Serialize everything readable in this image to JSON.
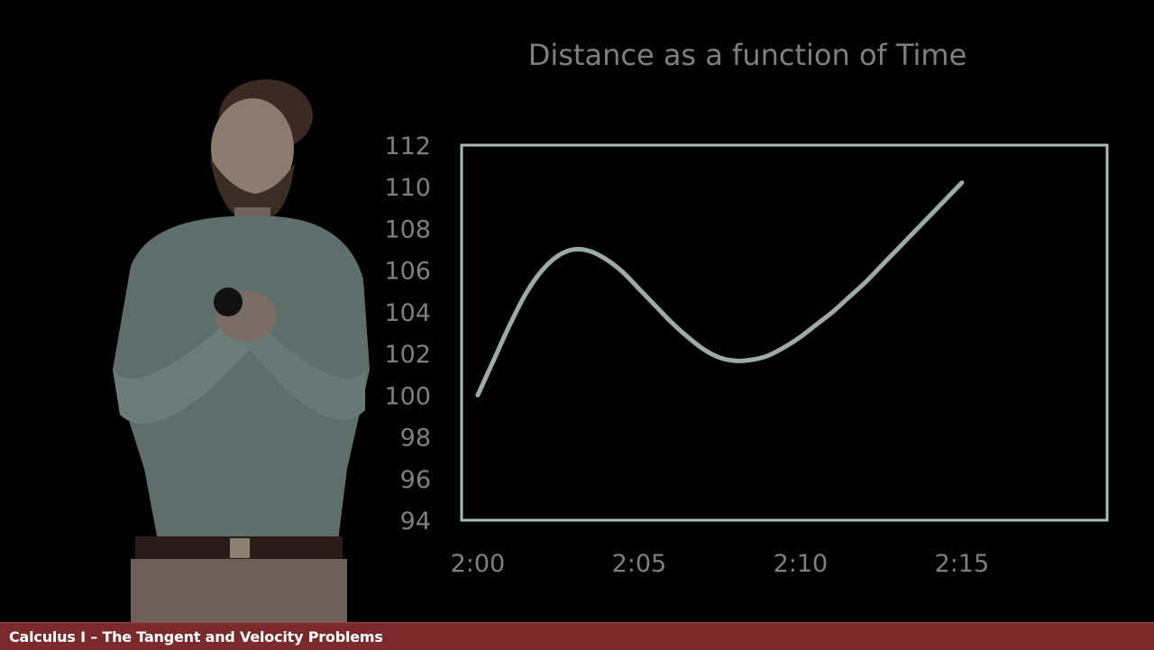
{
  "footer": {
    "title": "Calculus I – The Tangent and Velocity Problems"
  },
  "chart_data": {
    "type": "line",
    "title": "Distance as a function of Time",
    "xlabel": "",
    "ylabel": "",
    "x_ticks": [
      "2:00",
      "2:05",
      "2:10",
      "2:15"
    ],
    "xlim": [
      -0.5,
      19.5
    ],
    "ylim": [
      94,
      112
    ],
    "y_ticks": [
      94,
      96,
      98,
      100,
      102,
      104,
      106,
      108,
      110,
      112
    ],
    "grid": false,
    "series": [
      {
        "name": "Distance",
        "x": [
          0,
          0.5,
          1,
          1.5,
          2,
          2.5,
          3,
          3.5,
          4,
          4.5,
          5,
          5.5,
          6,
          6.5,
          7,
          7.5,
          8,
          8.5,
          9,
          9.5,
          10,
          10.5,
          11,
          11.5,
          12,
          12.5,
          13,
          13.5,
          14,
          14.5,
          15
        ],
        "y": [
          100,
          101.7,
          103.4,
          104.9,
          106.0,
          106.7,
          107.0,
          106.9,
          106.5,
          105.9,
          105.1,
          104.3,
          103.5,
          102.8,
          102.2,
          101.8,
          101.65,
          101.7,
          101.9,
          102.3,
          102.8,
          103.4,
          104.0,
          104.7,
          105.4,
          106.2,
          107.0,
          107.8,
          108.6,
          109.4,
          110.2
        ]
      }
    ],
    "colors": {
      "line": "#9aaba8",
      "frame": "#a8bdb8",
      "text": "#7f7f7f"
    }
  }
}
